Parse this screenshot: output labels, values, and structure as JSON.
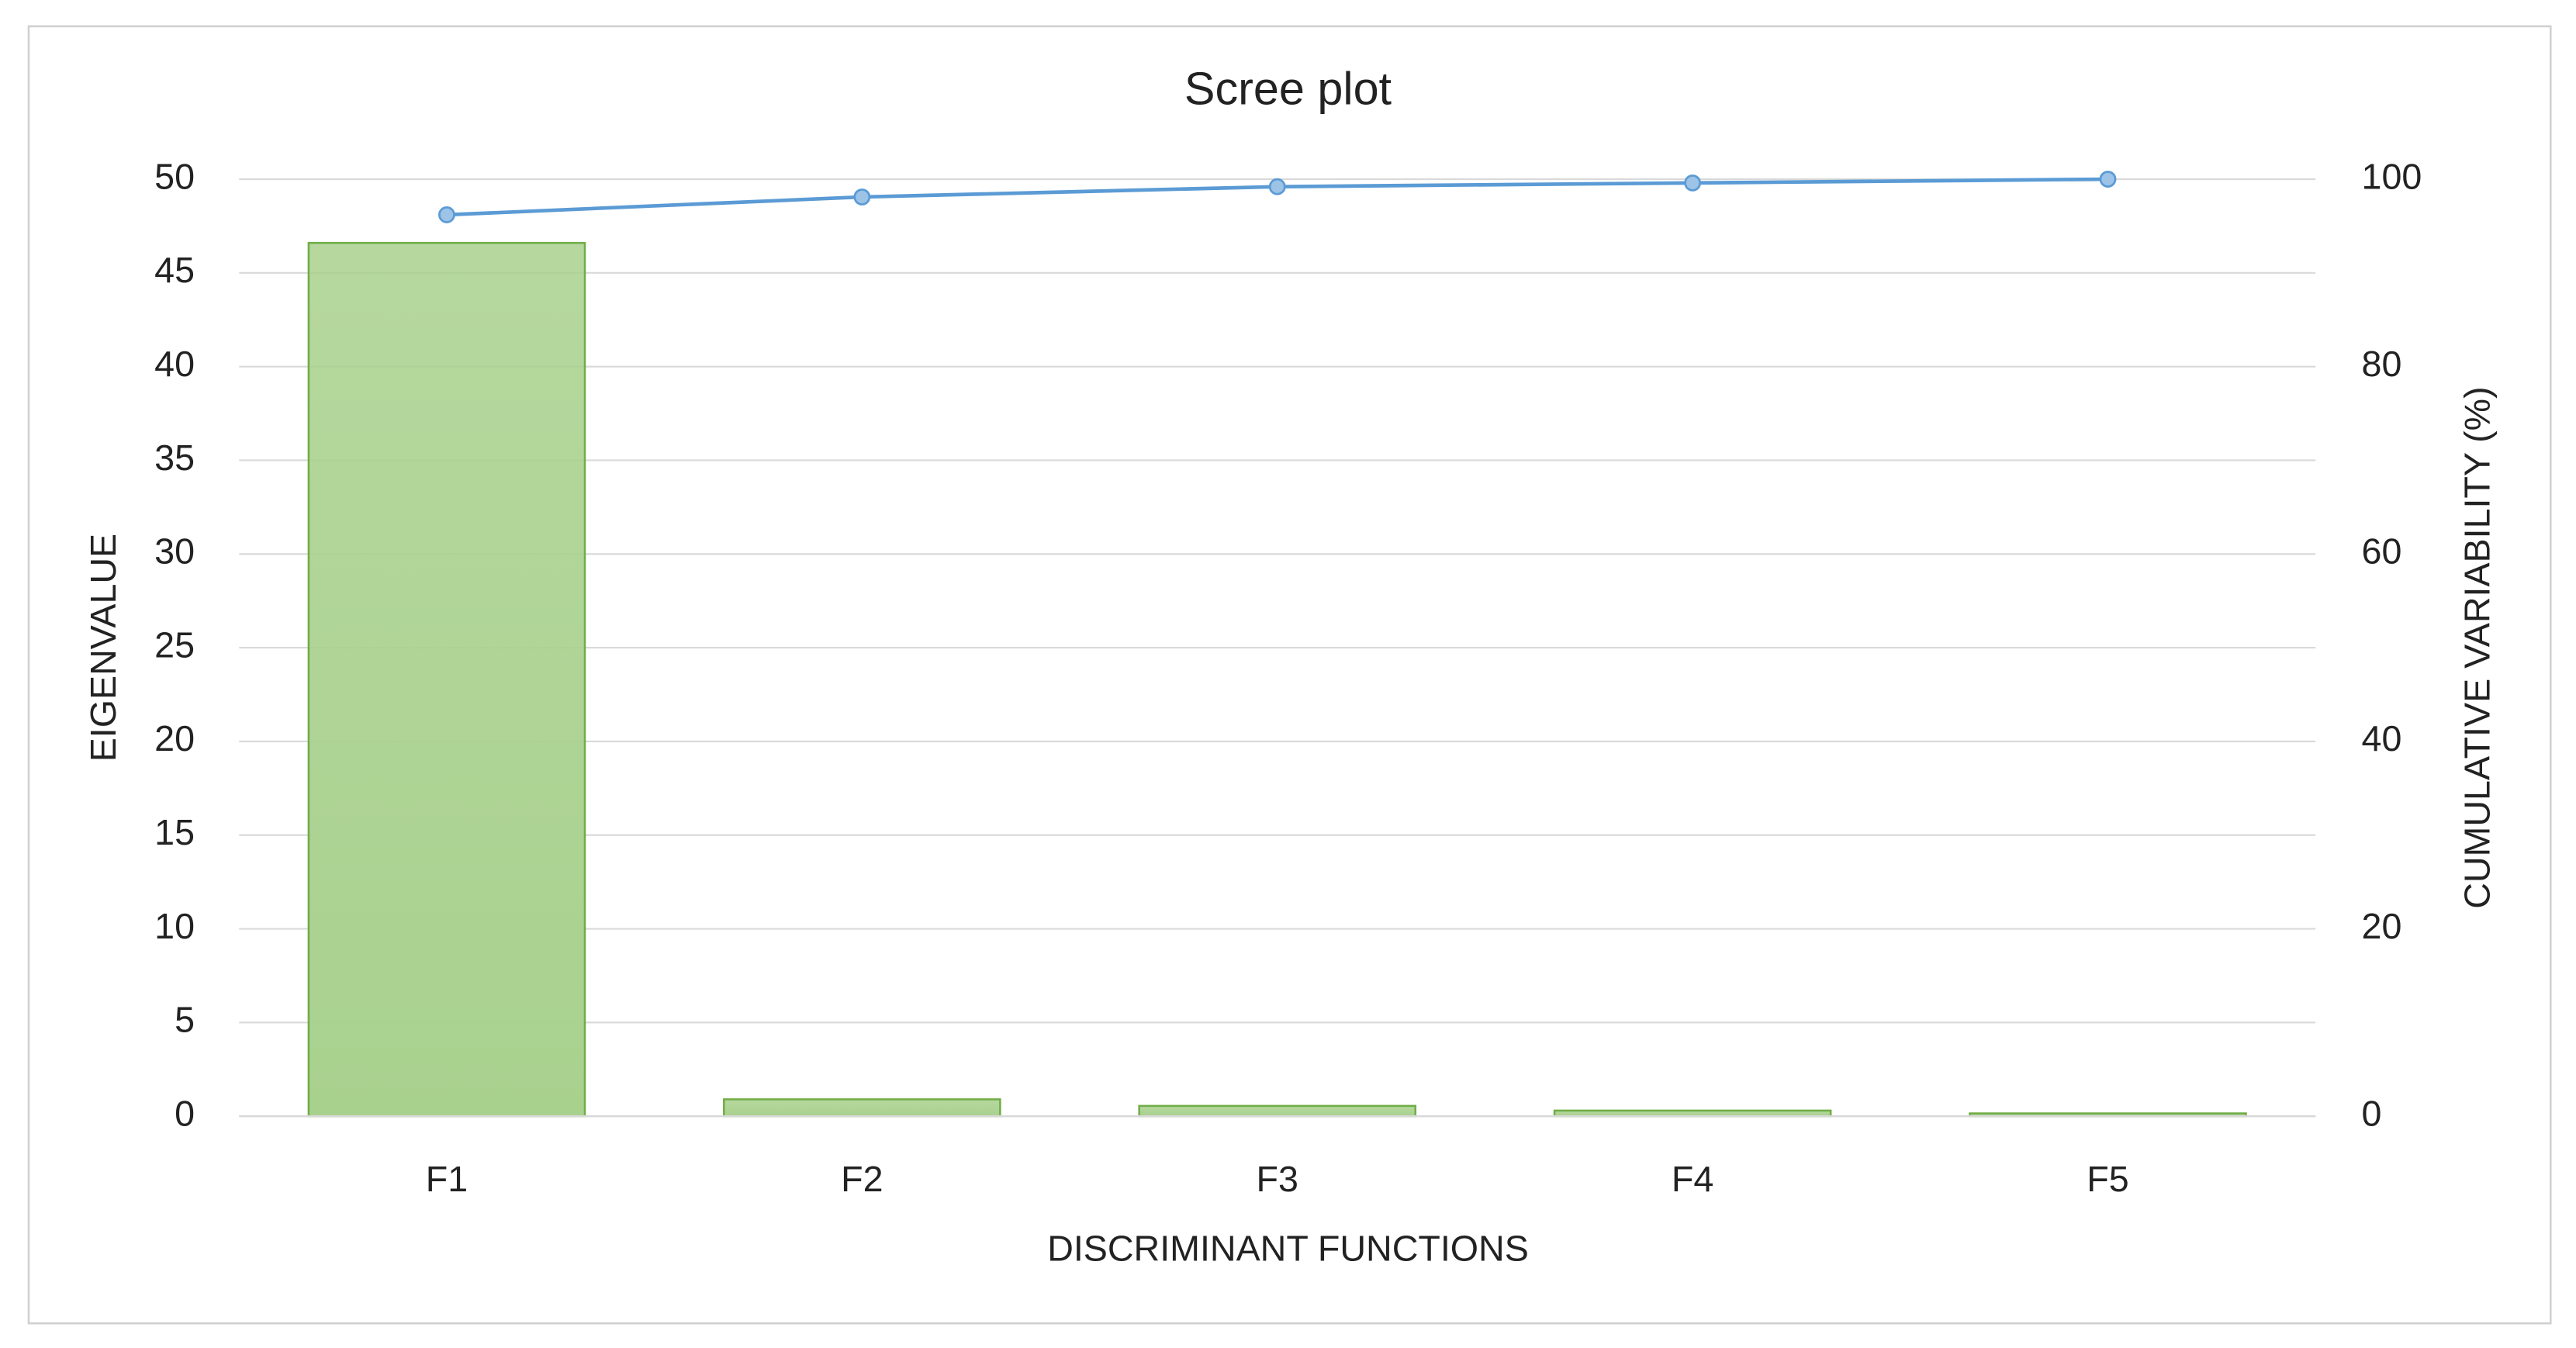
{
  "chart_data": {
    "type": "bar",
    "title": "Scree plot",
    "x_label": "DISCRIMINANT FUNCTIONS",
    "y_label": "EIGENVALUE",
    "y2_label": "CUMULATIVE VARIABILITY (%)",
    "categories": [
      "F1",
      "F2",
      "F3",
      "F4",
      "F5"
    ],
    "series": [
      {
        "type": "bar",
        "color": "#a9d18e",
        "values": [
          46.6,
          0.9,
          0.55,
          0.3,
          0.15
        ]
      },
      {
        "type": "line",
        "color": "#5b9bd5",
        "axis": "y2",
        "values": [
          96.2,
          98.1,
          99.2,
          99.6,
          100
        ]
      }
    ],
    "ylim": [
      0,
      50
    ],
    "yticks": [
      0,
      5,
      10,
      15,
      20,
      25,
      30,
      35,
      40,
      45,
      50
    ],
    "y2lim": [
      0,
      100
    ],
    "y2ticks": [
      0,
      20,
      40,
      60,
      80,
      100
    ],
    "grid": true
  }
}
